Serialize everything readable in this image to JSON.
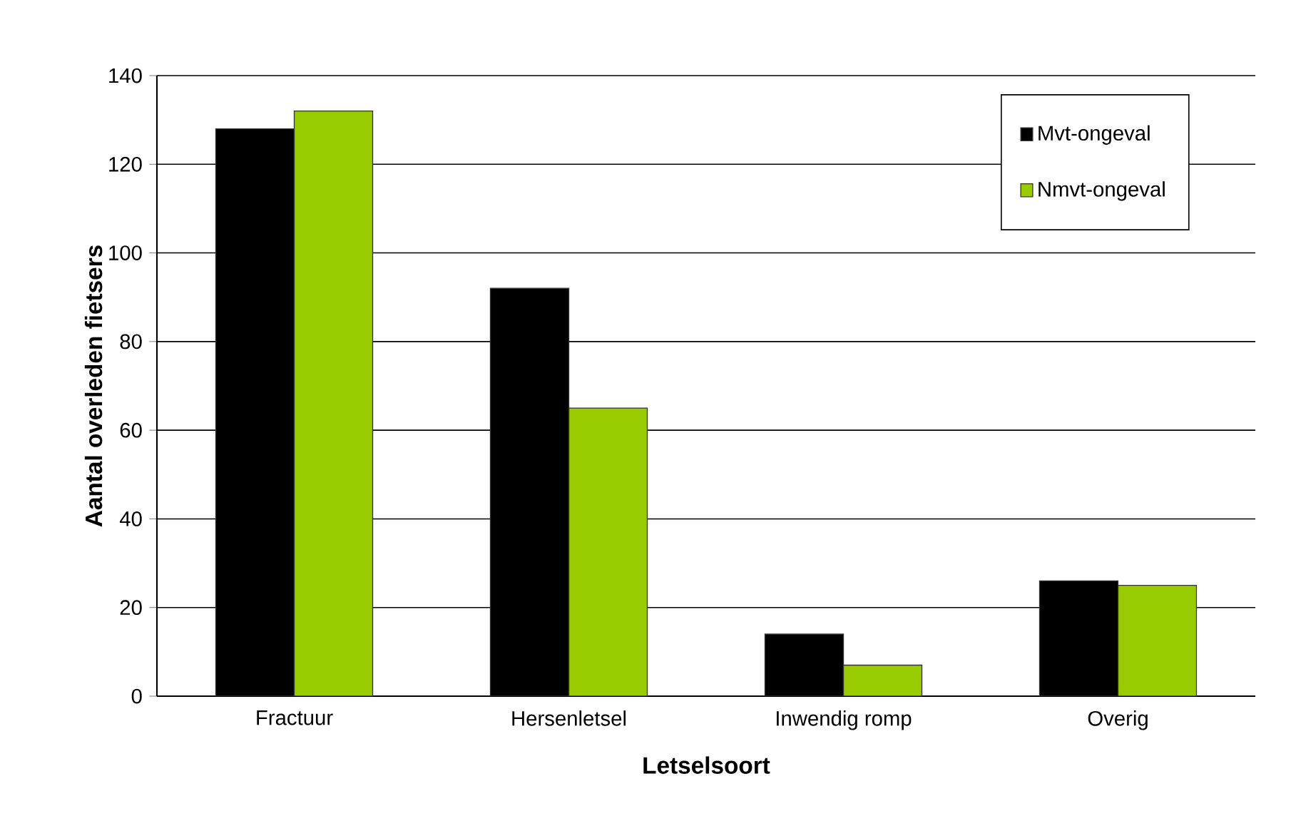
{
  "chart_data": {
    "type": "bar",
    "xlabel": "Letselsoort",
    "ylabel": "Aantal overleden fietsers",
    "categories": [
      "Fractuur",
      "Hersenletsel",
      "Inwendig romp",
      "Overig"
    ],
    "series": [
      {
        "name": "Mvt-ongeval",
        "color": "#000000",
        "values": [
          128,
          92,
          14,
          26
        ]
      },
      {
        "name": "Nmvt-ongeval",
        "color": "#99cc00",
        "values": [
          132,
          65,
          7,
          25
        ]
      }
    ],
    "ylim": [
      0,
      140
    ],
    "yticks": [
      0,
      20,
      40,
      60,
      80,
      100,
      120,
      140
    ],
    "grid": "y",
    "legend": "top right"
  }
}
